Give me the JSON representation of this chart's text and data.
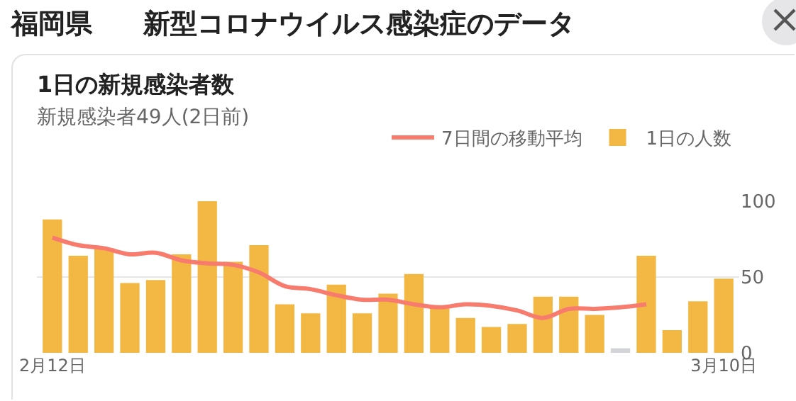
{
  "chart_data": {
    "type": "bar",
    "title": "1日の新規感染者数",
    "subtitle": "新規感染者49人(2日前)",
    "annotations": [
      "福岡県",
      "新型コロナウイルス感染症のデータ"
    ],
    "categories": [
      "2月12日",
      null,
      null,
      null,
      null,
      null,
      null,
      null,
      null,
      null,
      null,
      null,
      null,
      null,
      null,
      null,
      null,
      null,
      null,
      null,
      null,
      null,
      null,
      null,
      null,
      null,
      "3月10日"
    ],
    "series": [
      {
        "name": "7日間の移動平均",
        "type": "line",
        "color": "#f87c6e",
        "values": [
          76,
          71,
          69,
          65,
          66,
          61,
          59,
          58,
          53,
          44,
          42,
          38,
          35,
          35,
          32,
          30,
          32,
          31,
          28,
          23,
          29,
          29,
          30,
          32,
          null,
          null,
          null
        ]
      },
      {
        "name": "1日の人数",
        "colors": [
          "#f2b843",
          "#f2b843",
          "#f2b843",
          "#f2b843",
          "#f2b843",
          "#f2b843",
          "#f2b843",
          "#f2b843",
          "#f2b843",
          "#f2b843",
          "#f2b843",
          "#f2b843",
          "#f2b843",
          "#f2b843",
          "#f2b843",
          "#f2b843",
          "#f2b843",
          "#f2b843",
          "#f2b843",
          "#f2b843",
          "#f2b843",
          "#f2b843",
          "#d3d4d8",
          "#f2b843",
          "#f2b843",
          "#f2b843",
          "#f2b843"
        ],
        "values": [
          88,
          64,
          69,
          46,
          48,
          65,
          100,
          60,
          71,
          32,
          26,
          45,
          26,
          39,
          52,
          31,
          23,
          17,
          19,
          37,
          37,
          25,
          3,
          64,
          15,
          34,
          49
        ]
      }
    ],
    "ylim": [
      0,
      100
    ],
    "yticks": [
      0,
      50,
      100
    ],
    "grid": "y",
    "legend": "top right",
    "marker": "none"
  }
}
